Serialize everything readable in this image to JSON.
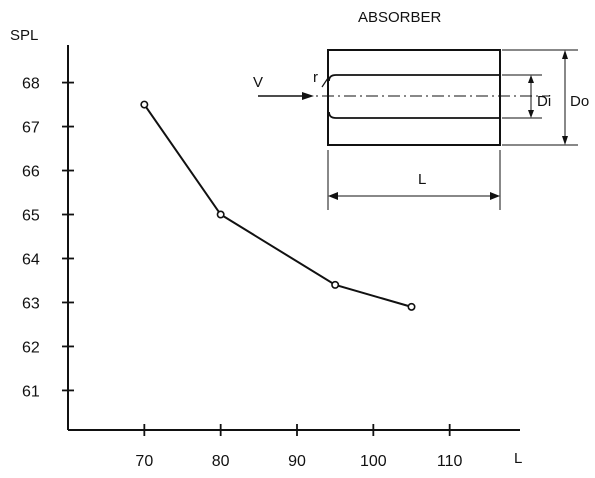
{
  "chart_data": {
    "type": "line",
    "xlabel": "L",
    "ylabel": "SPL",
    "x_ticks": [
      70,
      80,
      90,
      100,
      110
    ],
    "y_ticks": [
      61,
      62,
      63,
      64,
      65,
      66,
      67,
      68
    ],
    "xlim": [
      60,
      120
    ],
    "ylim": [
      60.1,
      68.9
    ],
    "grid": false,
    "series": [
      {
        "x": [
          70,
          80,
          95,
          105
        ],
        "y": [
          67.5,
          65.0,
          63.4,
          62.9
        ]
      }
    ],
    "marker": "open-circle",
    "colors": {
      "line": "#111111",
      "background": "#ffffff"
    }
  },
  "diagram": {
    "title": "ABSORBER",
    "labels": {
      "flow": "V",
      "radius": "r",
      "inner_diameter": "Di",
      "outer_diameter": "Do",
      "length": "L"
    }
  }
}
